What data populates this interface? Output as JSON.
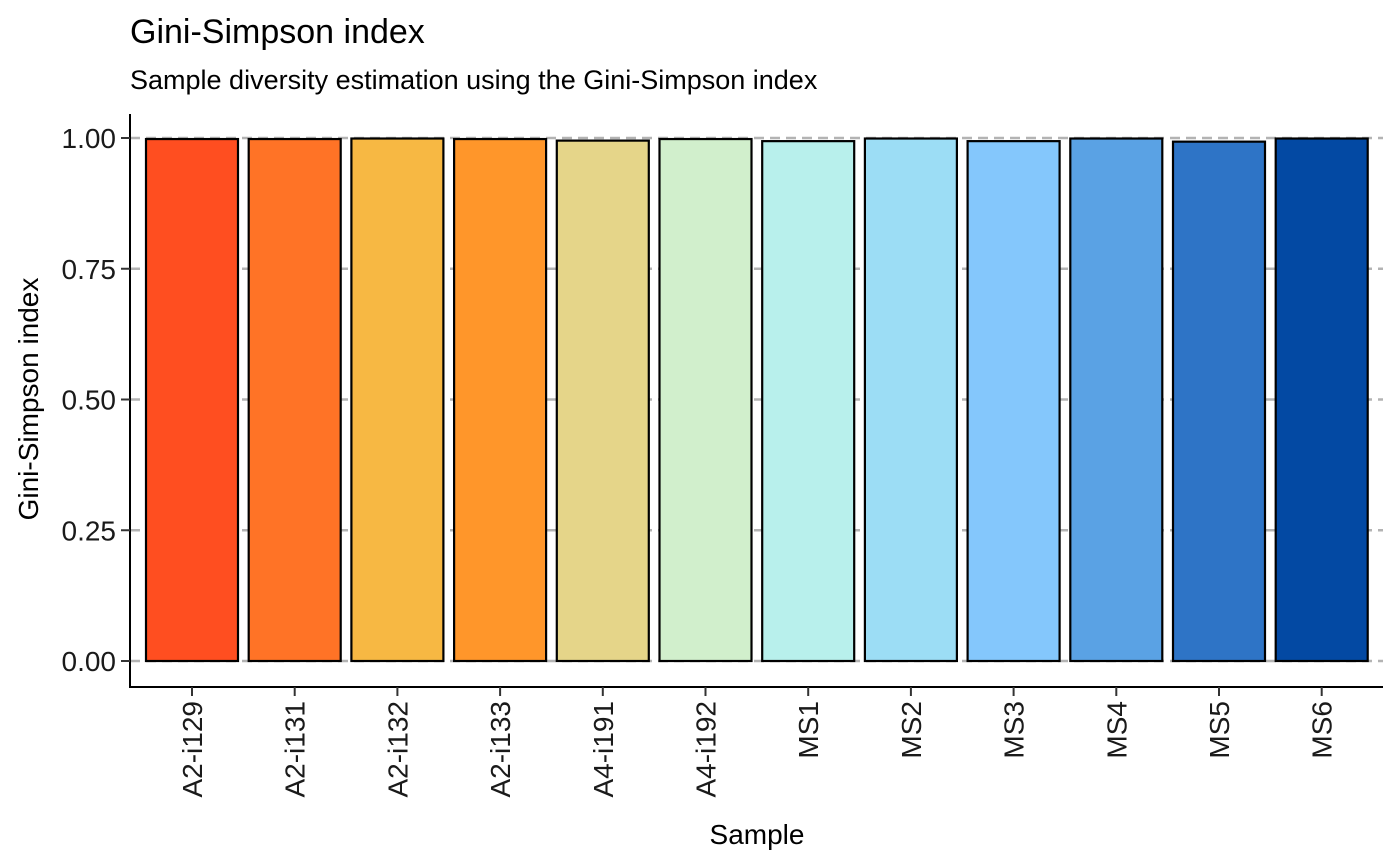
{
  "chart_data": {
    "type": "bar",
    "title": "Gini-Simpson index",
    "subtitle": "Sample diversity estimation using the Gini-Simpson index",
    "xlabel": "Sample",
    "ylabel": "Gini-Simpson index",
    "categories": [
      "A2-i129",
      "A2-i131",
      "A2-i132",
      "A2-i133",
      "A4-i191",
      "A4-i192",
      "MS1",
      "MS2",
      "MS3",
      "MS4",
      "MS5",
      "MS6"
    ],
    "values": [
      0.998,
      0.998,
      0.999,
      0.998,
      0.995,
      0.998,
      0.994,
      0.999,
      0.994,
      0.999,
      0.993,
      0.999
    ],
    "colors": [
      "#FF4E20",
      "#FF7326",
      "#F7B843",
      "#FF962A",
      "#E5D589",
      "#D1EFCC",
      "#B8F0EC",
      "#9CDDF5",
      "#84C7FC",
      "#5AA2E4",
      "#2E74C6",
      "#0349A3"
    ],
    "ylim": [
      0,
      1.05
    ],
    "yticks": [
      0,
      0.25,
      0.5,
      0.75,
      1.0
    ],
    "ytick_labels": [
      "0.00",
      "0.25",
      "0.50",
      "0.75",
      "1.00"
    ],
    "grid": "horizontal dashed",
    "legend": "none"
  }
}
